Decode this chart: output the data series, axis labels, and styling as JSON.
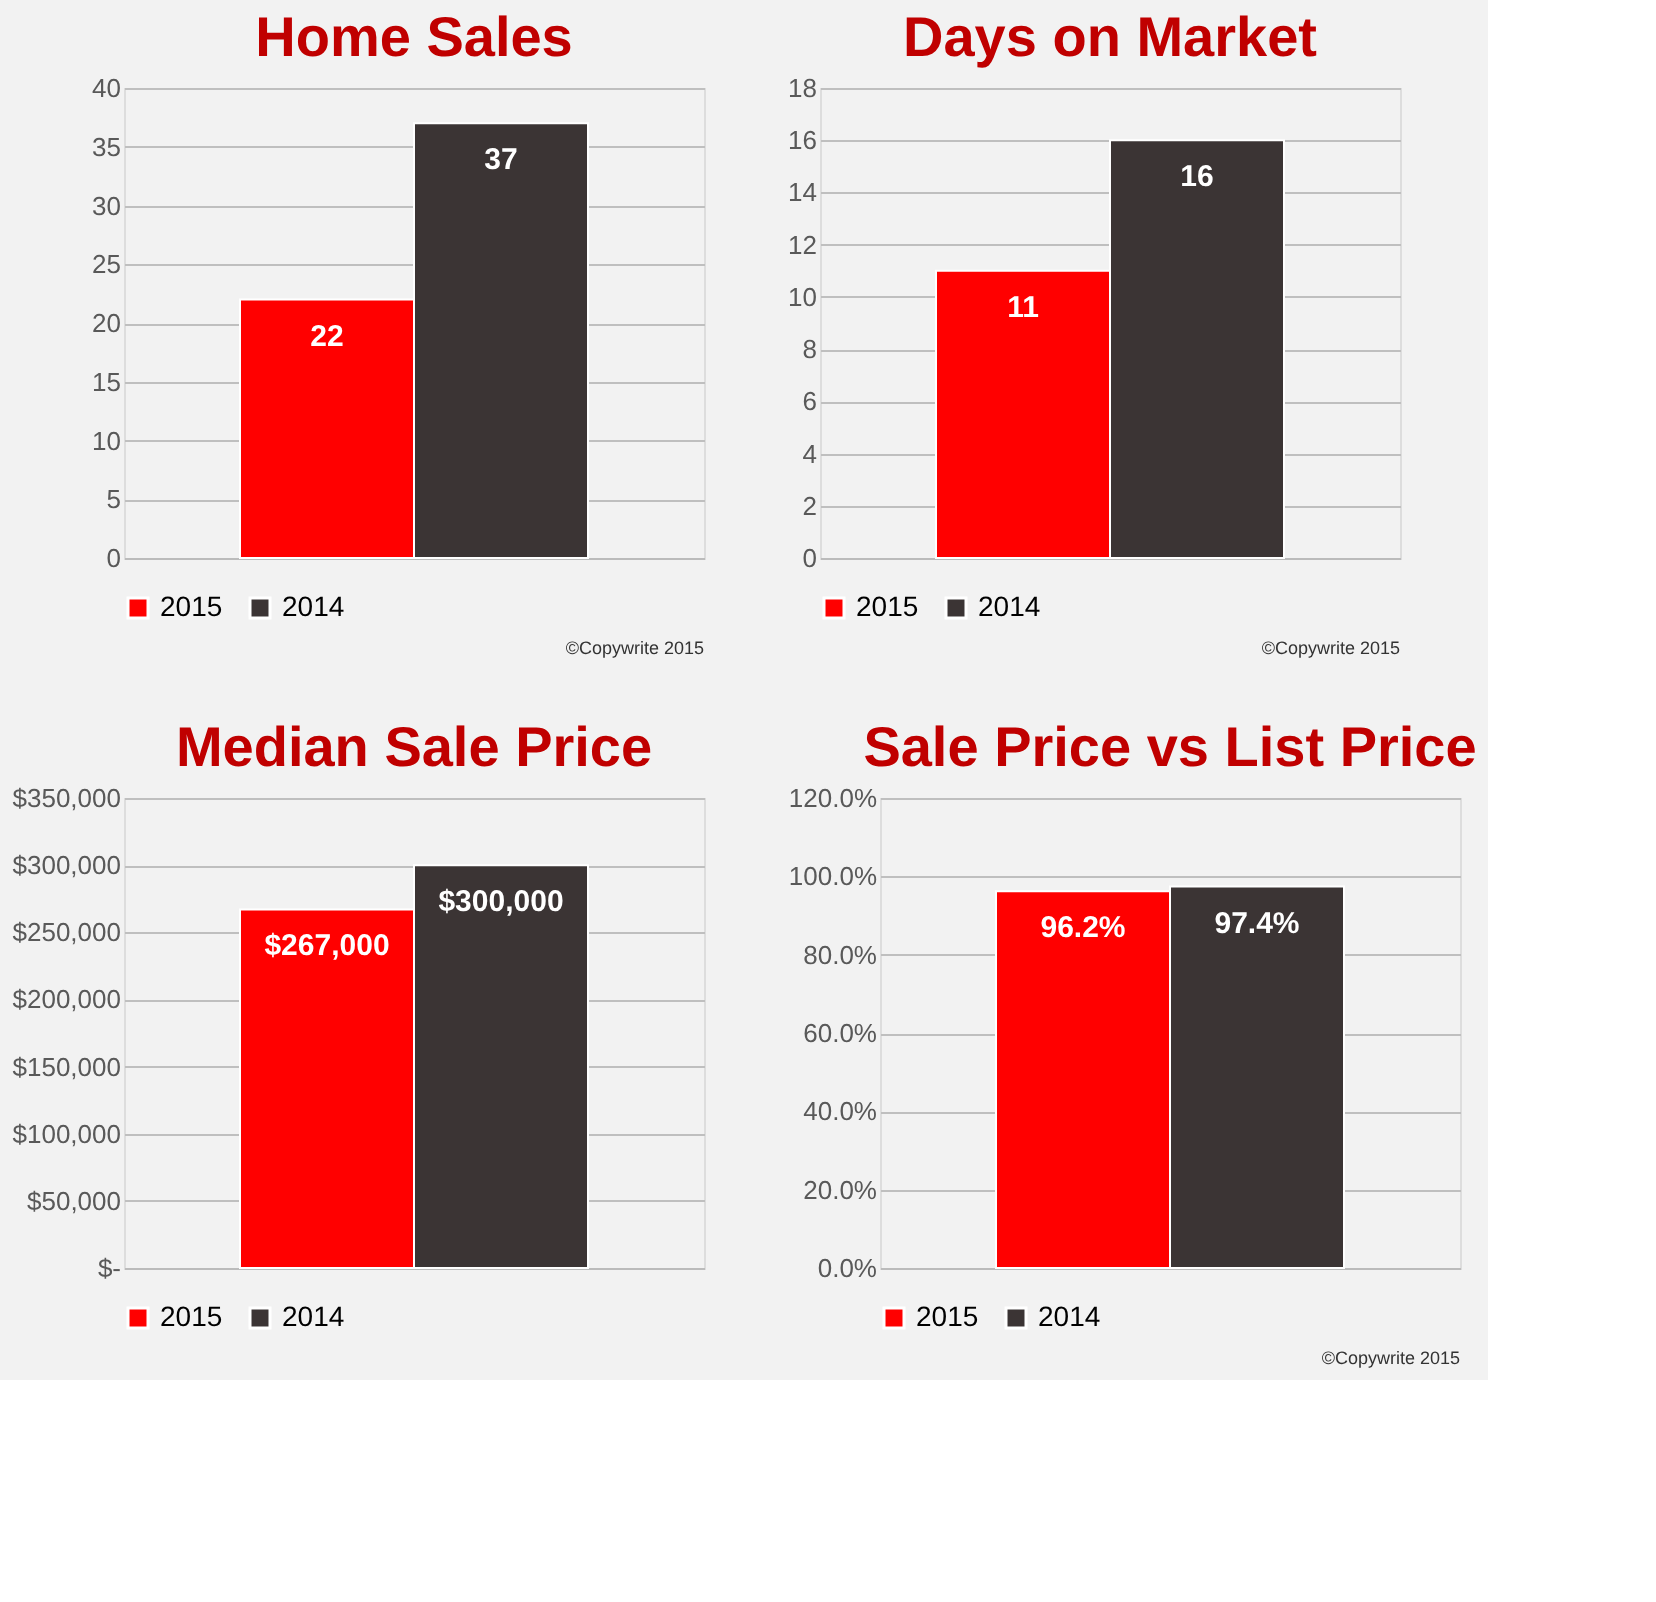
{
  "chart_data": [
    {
      "type": "bar",
      "title": "Home Sales",
      "categories": [
        null
      ],
      "series": [
        {
          "name": "2015",
          "color": "#ff0000",
          "values": [
            22
          ]
        },
        {
          "name": "2014",
          "color": "#3b3434",
          "values": [
            37
          ]
        }
      ],
      "ylim": [
        0,
        40
      ],
      "yticks": [
        0,
        5,
        10,
        15,
        20,
        25,
        30,
        35,
        40
      ],
      "grid": "y",
      "legend": "bottom",
      "data_labels": true,
      "annotations": [
        "©Copywrite 2015"
      ]
    },
    {
      "type": "bar",
      "title": "Days on Market",
      "categories": [
        null
      ],
      "series": [
        {
          "name": "2015",
          "color": "#ff0000",
          "values": [
            11
          ]
        },
        {
          "name": "2014",
          "color": "#3b3434",
          "values": [
            16
          ]
        }
      ],
      "ylim": [
        0,
        18
      ],
      "yticks": [
        0,
        2,
        4,
        6,
        8,
        10,
        12,
        14,
        16,
        18
      ],
      "grid": "y",
      "legend": "bottom",
      "data_labels": true,
      "annotations": [
        "©Copywrite 2015"
      ]
    },
    {
      "type": "bar",
      "title": "Median Sale Price",
      "categories": [
        null
      ],
      "series": [
        {
          "name": "2015",
          "color": "#ff0000",
          "values": [
            267000
          ],
          "value_labels": [
            "$267,000"
          ]
        },
        {
          "name": "2014",
          "color": "#3b3434",
          "values": [
            300000
          ],
          "value_labels": [
            "$300,000"
          ]
        }
      ],
      "ylim": [
        0,
        350000
      ],
      "yticks": [
        {
          "value": 0,
          "label": "$-"
        },
        {
          "value": 50000,
          "label": "$50,000"
        },
        {
          "value": 100000,
          "label": "$100,000"
        },
        {
          "value": 150000,
          "label": "$150,000"
        },
        {
          "value": 200000,
          "label": "$200,000"
        },
        {
          "value": 250000,
          "label": "$250,000"
        },
        {
          "value": 300000,
          "label": "$300,000"
        },
        {
          "value": 350000,
          "label": "$350,000"
        }
      ],
      "grid": "y",
      "legend": "bottom"
    },
    {
      "type": "bar",
      "title": "Sale Price vs List Price",
      "categories": [
        null
      ],
      "series": [
        {
          "name": "2015",
          "color": "#ff0000",
          "values": [
            96.2
          ],
          "value_labels": [
            "96.2%"
          ]
        },
        {
          "name": "2014",
          "color": "#3b3434",
          "values": [
            97.4
          ],
          "value_labels": [
            "97.4%"
          ]
        }
      ],
      "ylim": [
        0,
        120
      ],
      "yticks": [
        {
          "value": 0,
          "label": "0.0%"
        },
        {
          "value": 20,
          "label": "20.0%"
        },
        {
          "value": 40,
          "label": "40.0%"
        },
        {
          "value": 60,
          "label": "60.0%"
        },
        {
          "value": 80,
          "label": "80.0%"
        },
        {
          "value": 100,
          "label": "100.0%"
        },
        {
          "value": 120,
          "label": "120.0%"
        }
      ],
      "grid": "y",
      "legend": "bottom",
      "annotations": [
        "©Copywrite 2015"
      ]
    }
  ]
}
